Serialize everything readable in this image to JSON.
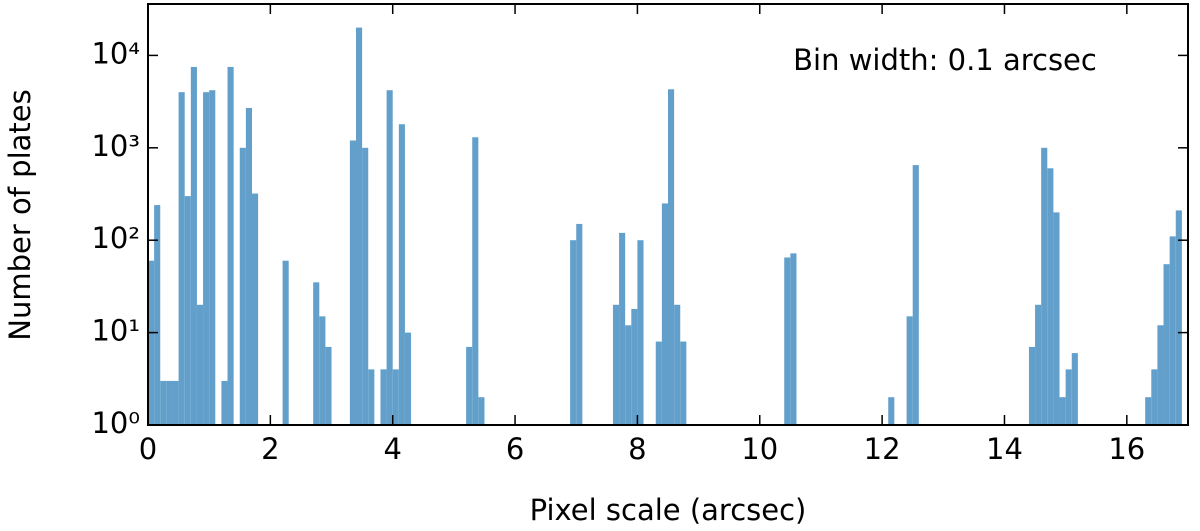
{
  "chart_data": {
    "type": "histogram",
    "xlabel": "Pixel scale (arcsec)",
    "ylabel": "Number of plates",
    "annotation": "Bin width: 0.1 arcsec",
    "color": "#62a0cb",
    "ylog": true,
    "xlim": [
      0,
      17
    ],
    "ylim": [
      1,
      36000
    ],
    "xticks": [
      0,
      2,
      4,
      6,
      8,
      10,
      12,
      14,
      16
    ],
    "yticks": [
      {
        "value": 1,
        "label": "10⁰"
      },
      {
        "value": 10,
        "label": "10¹"
      },
      {
        "value": 100,
        "label": "10²"
      },
      {
        "value": 1000,
        "label": "10³"
      },
      {
        "value": 10000,
        "label": "10⁴"
      }
    ],
    "bins": [
      0,
      0.1,
      0.2,
      0.3,
      0.4,
      0.5,
      0.6,
      0.7,
      0.8,
      0.9,
      1,
      1.1,
      1.2,
      1.3,
      1.4,
      1.5,
      1.6,
      1.7,
      1.8,
      1.9,
      2,
      2.1,
      2.2,
      2.3,
      2.4,
      2.5,
      2.6,
      2.7,
      2.8,
      2.9,
      3,
      3.1,
      3.2,
      3.3,
      3.4,
      3.5,
      3.6,
      3.7,
      3.8,
      3.9,
      4,
      4.1,
      4.2,
      4.3,
      4.4,
      4.5,
      4.6,
      4.7,
      4.8,
      4.9,
      5,
      5.1,
      5.2,
      5.3,
      5.4,
      5.5,
      5.6,
      5.7,
      5.8,
      5.9,
      6,
      6.1,
      6.2,
      6.3,
      6.4,
      6.5,
      6.6,
      6.7,
      6.8,
      6.9,
      7,
      7.1,
      7.2,
      7.3,
      7.4,
      7.5,
      7.6,
      7.7,
      7.8,
      7.9,
      8,
      8.1,
      8.2,
      8.3,
      8.4,
      8.5,
      8.6,
      8.7,
      8.8,
      8.9,
      9,
      9.1,
      9.2,
      9.3,
      9.4,
      9.5,
      9.6,
      9.7,
      9.8,
      9.9,
      10,
      10.1,
      10.2,
      10.3,
      10.4,
      10.5,
      10.6,
      10.7,
      10.8,
      10.9,
      11,
      11.1,
      11.2,
      11.3,
      11.4,
      11.5,
      11.6,
      11.7,
      11.8,
      11.9,
      12,
      12.1,
      12.2,
      12.3,
      12.4,
      12.5,
      12.6,
      12.7,
      12.8,
      12.9,
      13,
      13.1,
      13.2,
      13.3,
      13.4,
      13.5,
      13.6,
      13.7,
      13.8,
      13.9,
      14,
      14.1,
      14.2,
      14.3,
      14.4,
      14.5,
      14.6,
      14.7,
      14.8,
      14.9,
      15,
      15.1,
      15.2,
      15.3,
      15.4,
      15.5,
      15.6,
      15.7,
      15.8,
      15.9,
      16,
      16.1,
      16.2,
      16.3,
      16.4,
      16.5,
      16.6,
      16.7,
      16.8,
      16.9,
      17
    ],
    "values": [
      60,
      240,
      3,
      3,
      3,
      4000,
      300,
      7500,
      20,
      4000,
      4200,
      1,
      3,
      7500,
      1,
      1000,
      2700,
      320,
      0,
      0,
      0,
      0,
      60,
      0,
      0,
      0,
      0,
      35,
      15,
      7,
      0,
      0,
      0,
      1200,
      20000,
      1000,
      4,
      0,
      4,
      4200,
      4,
      1800,
      10,
      0,
      0,
      0,
      0,
      0,
      0,
      0,
      0,
      0,
      7,
      1300,
      2,
      0,
      0,
      0,
      0,
      0,
      0,
      0,
      0,
      0,
      0,
      0,
      0,
      0,
      0,
      100,
      150,
      0,
      0,
      0,
      0,
      0,
      20,
      120,
      12,
      18,
      100,
      0,
      0,
      8,
      250,
      4300,
      20,
      8,
      0,
      0,
      0,
      0,
      0,
      0,
      0,
      0,
      0,
      0,
      0,
      0,
      0,
      0,
      0,
      0,
      65,
      72,
      0,
      0,
      0,
      0,
      0,
      0,
      0,
      0,
      0,
      0,
      0,
      0,
      0,
      0,
      0,
      2,
      0,
      0,
      15,
      650,
      0,
      0,
      0,
      0,
      0,
      0,
      0,
      0,
      0,
      0,
      0,
      0,
      0,
      0,
      0,
      0,
      0,
      0,
      7,
      20,
      1000,
      600,
      200,
      2,
      4,
      6,
      0,
      0,
      0,
      0,
      0,
      0,
      0,
      0,
      0,
      0,
      0,
      2,
      4,
      12,
      55,
      110,
      210,
      0
    ]
  }
}
